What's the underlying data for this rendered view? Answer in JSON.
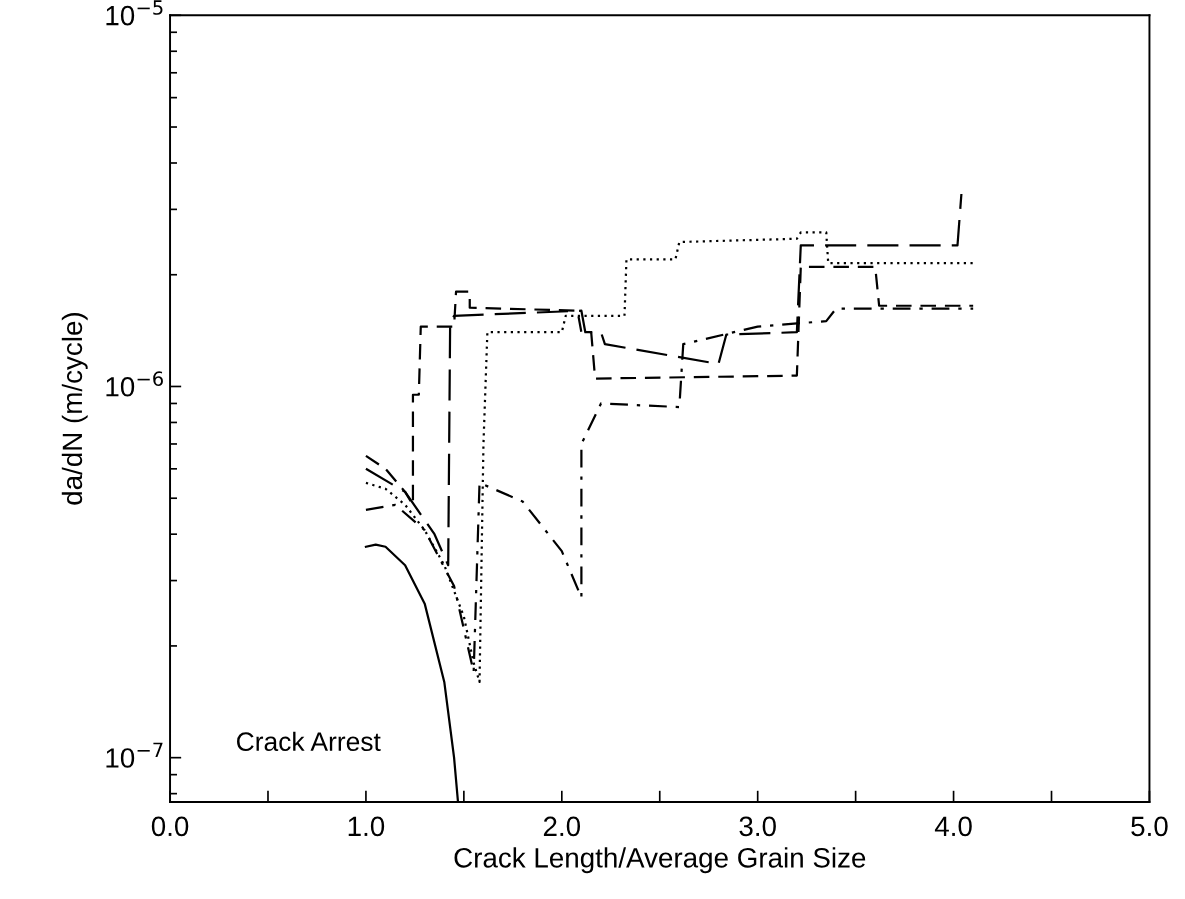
{
  "chart_data": {
    "type": "line",
    "xlabel": "Crack Length/Average Grain Size",
    "ylabel": "da/dN (m/cycle)",
    "log": "y",
    "xlim": [
      0,
      5
    ],
    "ylim": [
      7.6e-08,
      1e-05
    ],
    "xticks": [
      {
        "value": 0,
        "label": "0.0"
      },
      {
        "value": 0.5,
        "label": null
      },
      {
        "value": 1,
        "label": "1.0"
      },
      {
        "value": 1.5,
        "label": null
      },
      {
        "value": 2,
        "label": "2.0"
      },
      {
        "value": 2.5,
        "label": null
      },
      {
        "value": 3,
        "label": "3.0"
      },
      {
        "value": 3.5,
        "label": null
      },
      {
        "value": 4,
        "label": "4.0"
      },
      {
        "value": 4.5,
        "label": null
      },
      {
        "value": 5,
        "label": "5.0"
      }
    ],
    "yticks": [
      {
        "value": 1e-07,
        "label": "10$^{−7}$"
      },
      {
        "value": 1e-06,
        "label": "10$^{−6}$"
      },
      {
        "value": 1e-05,
        "label": "10$^{−5}$"
      }
    ],
    "grid": false,
    "legend": false,
    "marker": "none",
    "annotations": [
      "Crack Arrest"
    ],
    "series": [
      {
        "color": "#000000",
        "line_style": "solid",
        "x": [
          1.0,
          1.05,
          1.1,
          1.2,
          1.3,
          1.4,
          1.45,
          1.47
        ],
        "values": [
          3.7e-07,
          3.75e-07,
          3.7e-07,
          3.3e-07,
          2.6e-07,
          1.6e-07,
          1e-07,
          7.6e-08
        ]
      },
      {
        "color": "#000000",
        "line_style": "dotted",
        "x": [
          1.0,
          1.1,
          1.2,
          1.3,
          1.4,
          1.5,
          1.55,
          1.58,
          1.6,
          1.62,
          2.0,
          2.02,
          2.32,
          2.33,
          2.58,
          2.6,
          3.2,
          3.22,
          3.35,
          3.36,
          4.1
        ],
        "values": [
          5.5e-07,
          5.3e-07,
          4.8e-07,
          4.1e-07,
          3.3e-07,
          2.4e-07,
          1.8e-07,
          1.6e-07,
          7e-07,
          1.4e-06,
          1.4e-06,
          1.55e-06,
          1.55e-06,
          2.2e-06,
          2.2e-06,
          2.45e-06,
          2.5e-06,
          2.6e-06,
          2.6e-06,
          2.15e-06,
          2.15e-06
        ]
      },
      {
        "color": "#000000",
        "line_style": "dashed",
        "x": [
          1.0,
          1.1,
          1.2,
          1.24,
          1.24,
          1.27,
          1.28,
          1.45,
          1.46,
          1.53,
          1.53,
          2.08,
          2.1,
          2.15,
          2.17,
          3.2,
          3.22,
          3.6,
          3.62,
          4.1
        ],
        "values": [
          6.5e-07,
          6e-07,
          5.2e-07,
          4.8e-07,
          9.5e-07,
          9.5e-07,
          1.45e-06,
          1.45e-06,
          1.8e-06,
          1.8e-06,
          1.63e-06,
          1.6e-06,
          1.4e-06,
          1.4e-06,
          1.05e-06,
          1.07e-06,
          2.1e-06,
          2.1e-06,
          1.65e-06,
          1.65e-06
        ]
      },
      {
        "color": "#000000",
        "line_style": "longdash",
        "x": [
          1.0,
          1.2,
          1.35,
          1.42,
          1.43,
          1.45,
          2.1,
          2.12,
          2.2,
          2.22,
          2.8,
          2.84,
          3.2,
          3.22,
          4.02,
          4.04
        ],
        "values": [
          6e-07,
          5.2e-07,
          4e-07,
          3.3e-07,
          1.5e-06,
          1.55e-06,
          1.6e-06,
          1.4e-06,
          1.4e-06,
          1.3e-06,
          1.15e-06,
          1.38e-06,
          1.4e-06,
          2.4e-06,
          2.4e-06,
          3.3e-06
        ]
      },
      {
        "color": "#000000",
        "line_style": "dashdot",
        "x": [
          1.0,
          1.15,
          1.3,
          1.45,
          1.55,
          1.58,
          1.8,
          2.0,
          2.1,
          2.1,
          2.2,
          2.6,
          2.62,
          3.0,
          3.35,
          3.4,
          4.1
        ],
        "values": [
          4.65e-07,
          4.8e-07,
          4.1e-07,
          2.9e-07,
          1.7e-07,
          5.5e-07,
          4.9e-07,
          3.6e-07,
          2.7e-07,
          7e-07,
          9e-07,
          8.8e-07,
          1.3e-06,
          1.45e-06,
          1.5e-06,
          1.62e-06,
          1.62e-06
        ]
      }
    ]
  }
}
